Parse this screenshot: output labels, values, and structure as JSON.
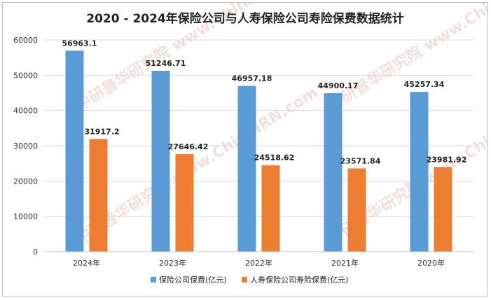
{
  "chart_data": {
    "type": "bar",
    "title": "2020 - 2024年保险公司与人寿保险公司寿险保费数据统计",
    "categories": [
      "2024年",
      "2023年",
      "2022年",
      "2021年",
      "2020年"
    ],
    "series": [
      {
        "name": "保险公司保费(亿元)",
        "color": "#5b9bd5",
        "values": [
          56963.1,
          51246.71,
          46957.18,
          44900.17,
          45257.34
        ]
      },
      {
        "name": "人寿保险公司寿险保费(亿元)",
        "color": "#ed7d31",
        "values": [
          31917.2,
          27646.42,
          24518.62,
          23571.84,
          23981.92
        ]
      }
    ],
    "data_labels": [
      [
        "56963.1",
        "51246.71",
        "46957.18",
        "44900.17",
        "45257.34"
      ],
      [
        "31917.2",
        "27646.42",
        "24518.62",
        "23571.84",
        "23981.92"
      ]
    ],
    "ylim": [
      0,
      60000
    ],
    "yticks": [
      "0",
      "10000",
      "20000",
      "30000",
      "40000",
      "50000",
      "60000"
    ],
    "grid": true,
    "legend": "bottom",
    "watermark": "中研普华研究院 www.ChinaIRN.com"
  }
}
